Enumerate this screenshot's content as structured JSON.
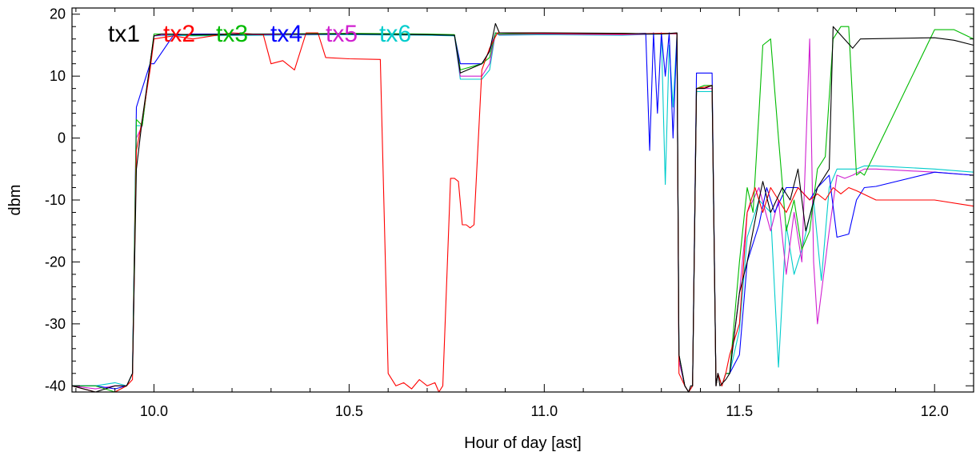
{
  "chart_data": {
    "type": "line",
    "title": "",
    "xlabel": "Hour of day [ast]",
    "ylabel": "dbm",
    "xlim": [
      9.79,
      12.1
    ],
    "ylim": [
      -41,
      21
    ],
    "xticks": [
      10.0,
      10.5,
      11.0,
      11.5,
      12.0
    ],
    "xtick_labels": [
      "10.0",
      "10.5",
      "11.0",
      "11.5",
      "12.0"
    ],
    "yticks": [
      -40,
      -30,
      -20,
      -10,
      0,
      10,
      20
    ],
    "ytick_labels": [
      "-40",
      "-30",
      "-20",
      "-10",
      "0",
      "10",
      "20"
    ],
    "grid": false,
    "legend_position": "top-left",
    "series": [
      {
        "name": "tx1",
        "color": "#000000",
        "x": [
          9.79,
          9.85,
          9.9,
          9.93,
          9.945,
          9.955,
          9.97,
          9.99,
          10.0,
          10.02,
          10.1,
          10.3,
          10.5,
          10.7,
          10.77,
          10.785,
          10.84,
          10.86,
          10.875,
          10.885,
          11.0,
          11.2,
          11.3,
          11.34,
          11.345,
          11.36,
          11.37,
          11.375,
          11.38,
          11.39,
          11.41,
          11.43,
          11.44,
          11.445,
          11.45,
          11.465,
          11.475,
          11.5,
          11.52,
          11.535,
          11.55,
          11.56,
          11.58,
          11.61,
          11.63,
          11.65,
          11.67,
          11.7,
          11.73,
          11.74,
          11.79,
          11.81,
          12.0,
          12.05,
          12.1
        ],
        "y": [
          -40,
          -41,
          -40,
          -40,
          -38,
          -5,
          3,
          12,
          16.5,
          16.8,
          16.7,
          16.8,
          16.8,
          16.7,
          16.6,
          10.5,
          12,
          14,
          18.5,
          17,
          17,
          16.9,
          16.8,
          17,
          -35,
          -40,
          -41,
          -40,
          -40,
          8,
          8,
          8.5,
          -40,
          -38,
          -40,
          -39,
          -38,
          -25,
          -20,
          -15,
          -10,
          -7,
          -12,
          -8,
          -10,
          -5,
          -15,
          -8,
          -5,
          18,
          14.5,
          16,
          16.2,
          15.8,
          15
        ],
        "marks": []
      },
      {
        "name": "tx2",
        "color": "#ff0000",
        "x": [
          9.79,
          9.85,
          9.9,
          9.93,
          9.945,
          9.955,
          9.97,
          9.99,
          10.0,
          10.05,
          10.1,
          10.2,
          10.28,
          10.3,
          10.33,
          10.36,
          10.39,
          10.42,
          10.44,
          10.5,
          10.58,
          10.6,
          10.62,
          10.64,
          10.66,
          10.68,
          10.7,
          10.72,
          10.73,
          10.74,
          10.76,
          10.77,
          10.78,
          10.79,
          10.8,
          10.81,
          10.82,
          10.84,
          10.86,
          10.88,
          11.0,
          11.2,
          11.3,
          11.34,
          11.345,
          11.36,
          11.37,
          11.38,
          11.39,
          11.41,
          11.43,
          11.44,
          11.445,
          11.455,
          11.465,
          11.475,
          11.5,
          11.52,
          11.54,
          11.56,
          11.58,
          11.6,
          11.62,
          11.65,
          11.68,
          11.7,
          11.72,
          11.74,
          11.76,
          11.78,
          11.8,
          11.85,
          12.0,
          12.1
        ],
        "y": [
          -40,
          -41,
          -41,
          -40,
          -39,
          -2,
          3,
          11,
          16,
          16.5,
          16,
          17,
          16.7,
          12,
          12.5,
          11,
          17,
          17,
          13,
          12.8,
          12.7,
          -38,
          -40,
          -39.5,
          -40.5,
          -39,
          -40,
          -39.5,
          -41,
          -40,
          -6.5,
          -6.5,
          -7,
          -14,
          -14,
          -14.5,
          -14,
          11,
          14.5,
          17,
          16.9,
          16.8,
          16.9,
          16.9,
          -38,
          -40,
          -41,
          -40,
          8,
          8.2,
          8.5,
          -40,
          -38,
          -40,
          -38,
          -35,
          -30,
          -12,
          -8,
          -12,
          -8,
          -10,
          -12,
          -8,
          -10,
          -9,
          -10,
          -8,
          -9,
          -8,
          -8.5,
          -10,
          -10,
          -11
        ],
        "marks": []
      },
      {
        "name": "tx3",
        "color": "#00bb00",
        "x": [
          9.79,
          9.85,
          9.9,
          9.93,
          9.945,
          9.955,
          9.97,
          9.99,
          10.0,
          10.05,
          10.1,
          10.3,
          10.5,
          10.7,
          10.77,
          10.785,
          10.84,
          10.86,
          10.875,
          10.885,
          11.0,
          11.2,
          11.3,
          11.34,
          11.345,
          11.36,
          11.37,
          11.38,
          11.39,
          11.41,
          11.43,
          11.44,
          11.445,
          11.455,
          11.465,
          11.475,
          11.5,
          11.52,
          11.535,
          11.55,
          11.56,
          11.58,
          11.6,
          11.62,
          11.64,
          11.66,
          11.68,
          11.7,
          11.72,
          11.74,
          11.76,
          11.78,
          11.8,
          11.81,
          11.82,
          12.0,
          12.05,
          12.1
        ],
        "y": [
          -40,
          -40,
          -41,
          -40,
          -38,
          3,
          2,
          12,
          16.8,
          16.8,
          16.6,
          16.8,
          16.9,
          16.8,
          16.7,
          11,
          12,
          13,
          17,
          16.8,
          16.9,
          16.9,
          16.8,
          16.9,
          -35,
          -40,
          -41,
          -40,
          8,
          8.5,
          8.5,
          -40,
          -38,
          -40,
          -38,
          -38,
          -20,
          -8,
          -12,
          4,
          15,
          16,
          0,
          -15,
          -10,
          -18,
          -15,
          -5,
          -3,
          16,
          18,
          18,
          -6,
          -5.5,
          -6,
          17.5,
          17.5,
          16
        ],
        "marks": []
      },
      {
        "name": "tx4",
        "color": "#0000ff",
        "x": [
          9.79,
          9.85,
          9.9,
          9.93,
          9.945,
          9.955,
          9.97,
          9.99,
          10.0,
          10.05,
          10.1,
          10.3,
          10.5,
          10.7,
          10.77,
          10.785,
          10.84,
          10.86,
          10.875,
          10.885,
          11.0,
          11.2,
          11.26,
          11.27,
          11.28,
          11.29,
          11.3,
          11.31,
          11.32,
          11.33,
          11.34,
          11.345,
          11.36,
          11.37,
          11.38,
          11.39,
          11.42,
          11.43,
          11.44,
          11.445,
          11.455,
          11.465,
          11.475,
          11.5,
          11.52,
          11.55,
          11.57,
          11.59,
          11.62,
          11.65,
          11.68,
          11.7,
          11.73,
          11.75,
          11.78,
          11.8,
          11.82,
          11.85,
          12.0,
          12.1
        ],
        "y": [
          -40,
          -40,
          -40.5,
          -40,
          -38,
          5,
          8,
          12,
          12,
          16.6,
          16.8,
          16.8,
          16.8,
          16.7,
          16.6,
          12,
          12,
          14,
          17,
          16.8,
          16.9,
          16.8,
          16.9,
          -2,
          17,
          4,
          17,
          10,
          17,
          0,
          16.9,
          -35,
          -40,
          -41,
          -40,
          10.5,
          10.5,
          10.5,
          -40,
          -38,
          -40,
          -38,
          -38,
          -35,
          -20,
          -14,
          -8,
          -12,
          -8,
          -8,
          -10,
          -8,
          -6,
          -16,
          -15.5,
          -10,
          -8,
          -7.8,
          -5.5,
          -6
        ],
        "marks": []
      },
      {
        "name": "tx5",
        "color": "#d020d0",
        "x": [
          9.79,
          9.85,
          9.9,
          9.93,
          9.945,
          9.955,
          9.97,
          9.99,
          10.0,
          10.05,
          10.1,
          10.3,
          10.5,
          10.7,
          10.77,
          10.785,
          10.84,
          10.86,
          10.875,
          10.885,
          11.0,
          11.2,
          11.3,
          11.34,
          11.345,
          11.36,
          11.37,
          11.38,
          11.39,
          11.41,
          11.43,
          11.44,
          11.445,
          11.455,
          11.465,
          11.475,
          11.5,
          11.52,
          11.55,
          11.58,
          11.6,
          11.62,
          11.64,
          11.66,
          11.68,
          11.69,
          11.7,
          11.73,
          11.75,
          11.77,
          11.79,
          11.82,
          11.85,
          12.0,
          12.1
        ],
        "y": [
          -40,
          -40.5,
          -40,
          -40,
          -38,
          0,
          2,
          12,
          16.5,
          16.8,
          16.6,
          16.7,
          16.8,
          16.7,
          16.6,
          10,
          10,
          12,
          17,
          16.7,
          16.8,
          16.7,
          16.8,
          16.8,
          -36,
          -40,
          -41,
          -40,
          8,
          8,
          8,
          -40,
          -38,
          -40,
          -38,
          -38,
          -25,
          -12,
          -8,
          -15,
          -10,
          -22,
          -12,
          -20,
          16,
          -20,
          -30,
          -15,
          -6,
          -6.5,
          -6,
          -5,
          -5,
          -5.5,
          -6
        ],
        "marks": []
      },
      {
        "name": "tx6",
        "color": "#00cccc",
        "x": [
          9.79,
          9.85,
          9.9,
          9.93,
          9.945,
          9.955,
          9.97,
          9.99,
          10.0,
          10.05,
          10.1,
          10.3,
          10.5,
          10.7,
          10.77,
          10.785,
          10.84,
          10.86,
          10.875,
          10.885,
          11.0,
          11.2,
          11.3,
          11.31,
          11.32,
          11.33,
          11.34,
          11.345,
          11.36,
          11.37,
          11.38,
          11.39,
          11.42,
          11.43,
          11.44,
          11.445,
          11.455,
          11.465,
          11.475,
          11.5,
          11.52,
          11.55,
          11.58,
          11.6,
          11.62,
          11.64,
          11.66,
          11.69,
          11.71,
          11.73,
          11.75,
          11.78,
          11.8,
          11.82,
          11.85,
          12.0,
          12.1
        ],
        "y": [
          -40,
          -40,
          -39.5,
          -40,
          -38,
          2,
          2,
          12,
          16.5,
          16.6,
          16.5,
          16.6,
          16.7,
          16.6,
          16.5,
          9.5,
          9.5,
          11,
          17,
          16.6,
          16.7,
          16.6,
          16.8,
          -7.5,
          15,
          5,
          16.7,
          -36,
          -40,
          -41,
          -40,
          7.5,
          7.5,
          7.5,
          -40,
          -38,
          -40,
          -38,
          -38,
          -31,
          -16,
          -10,
          -12,
          -37,
          -14,
          -22,
          -18,
          -10,
          -23,
          -8,
          -5,
          -5,
          -5,
          -4.5,
          -4.5,
          -5,
          -5.5
        ],
        "marks": []
      }
    ]
  }
}
